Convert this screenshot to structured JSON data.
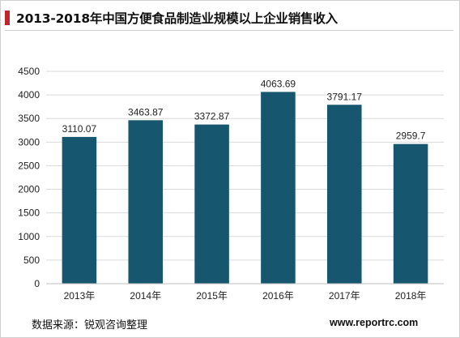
{
  "header": {
    "title": "2013-2018年中国方便食品制造业规模以上企业销售收入"
  },
  "footer": {
    "source": "数据来源：锐观咨询整理",
    "website": "www.reportrc.com"
  },
  "colors": {
    "bar": "#16566e",
    "accent": "#c0272d",
    "gridline": "#d9d9d9",
    "axis": "#bfbfbf"
  },
  "chart_data": {
    "type": "bar",
    "title": "2013-2018年中国方便食品制造业规模以上企业销售收入",
    "xlabel": "",
    "ylabel": "",
    "categories": [
      "2013年",
      "2014年",
      "2015年",
      "2016年",
      "2017年",
      "2018年"
    ],
    "values": [
      3110.07,
      3463.87,
      3372.87,
      4063.69,
      3791.17,
      2959.7
    ],
    "value_labels": [
      "3110.07",
      "3463.87",
      "3372.87",
      "4063.69",
      "3791.17",
      "2959.7"
    ],
    "ylim": [
      0,
      4500
    ],
    "yticks": [
      0,
      500,
      1000,
      1500,
      2000,
      2500,
      3000,
      3500,
      4000,
      4500
    ],
    "grid": true,
    "legend": "none"
  }
}
